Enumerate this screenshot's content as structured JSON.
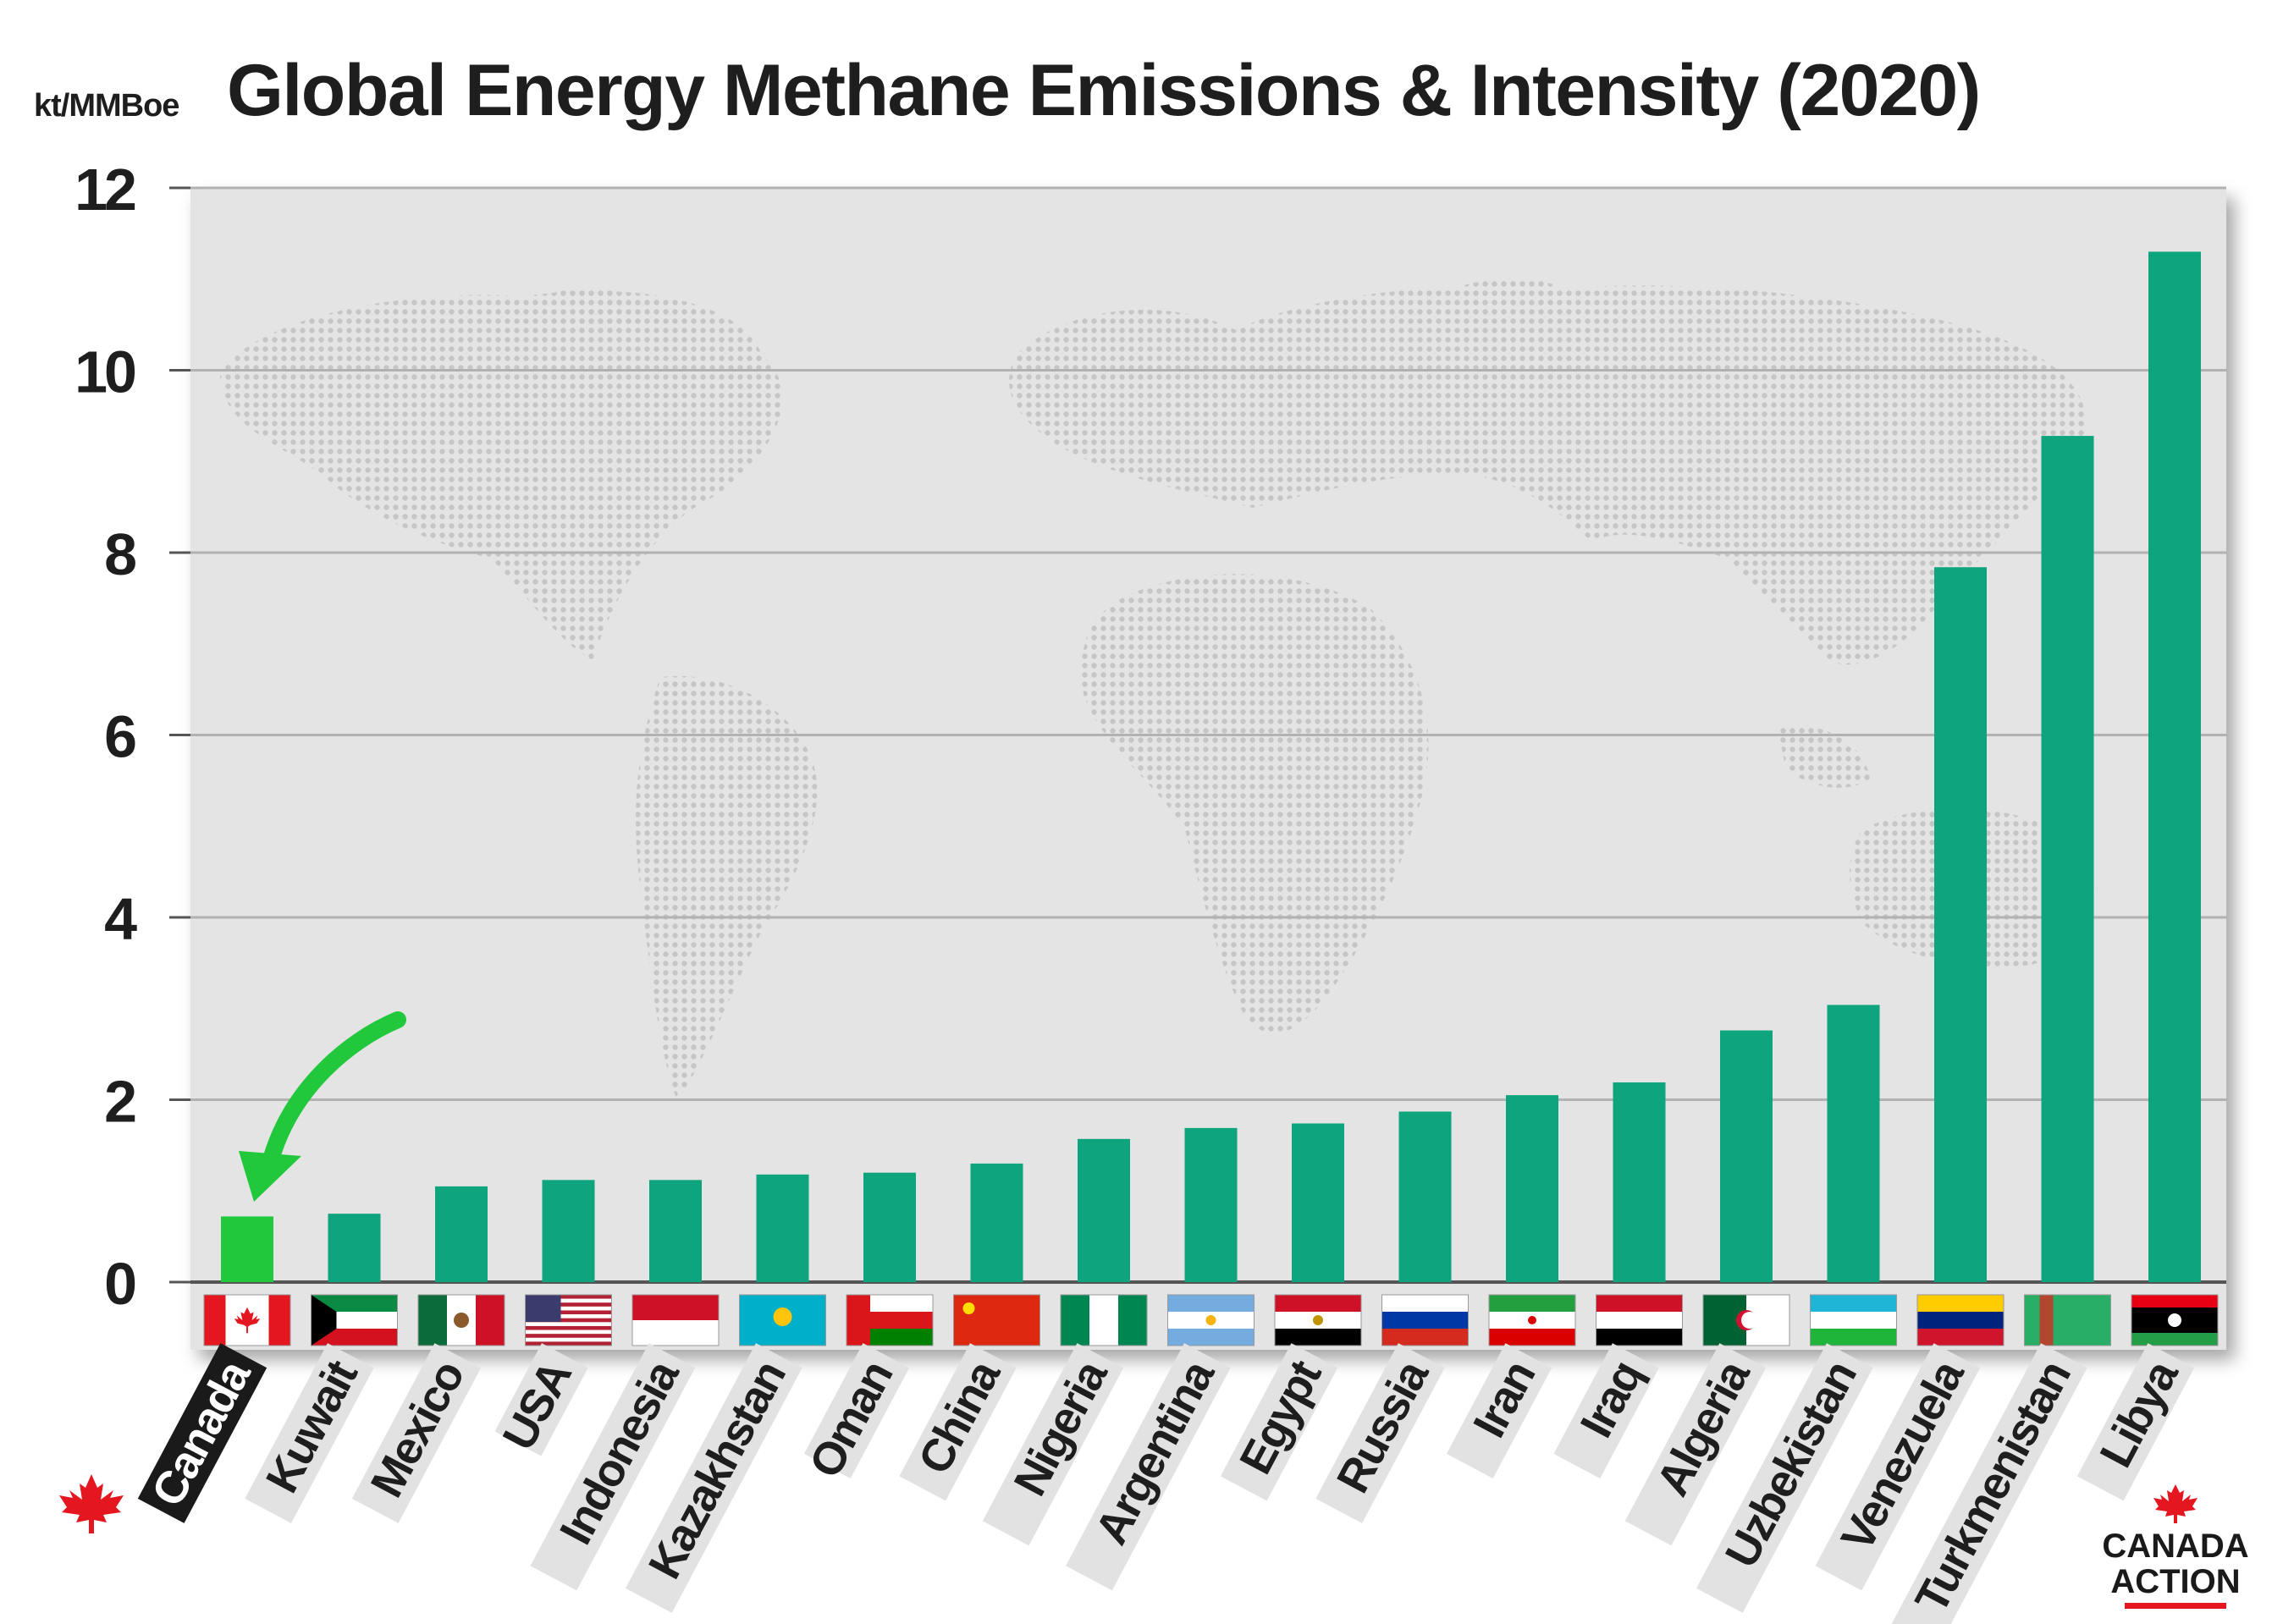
{
  "chart_data": {
    "type": "bar",
    "title": "Global Energy Methane Emissions & Intensity (2020)",
    "ylabel": "kt/MMBoe",
    "xlabel": "",
    "ylim": [
      0,
      12
    ],
    "yticks": [
      0,
      2,
      4,
      6,
      8,
      10,
      12
    ],
    "grid": true,
    "legend": "none",
    "categories": [
      "Canada",
      "Kuwait",
      "Mexico",
      "USA",
      "Indonesia",
      "Kazakhstan",
      "Oman",
      "China",
      "Nigeria",
      "Argentina",
      "Egypt",
      "Russia",
      "Iran",
      "Iraq",
      "Algeria",
      "Uzbekistan",
      "Venezuela",
      "Turkmenistan",
      "Libya"
    ],
    "series": [
      {
        "values": [
          0.72,
          0.75,
          1.05,
          1.12,
          1.12,
          1.18,
          1.2,
          1.3,
          1.57,
          1.69,
          1.74,
          1.87,
          2.05,
          2.19,
          2.76,
          3.04,
          7.84,
          9.28,
          11.3
        ]
      }
    ],
    "highlight": "Canada",
    "colors": {
      "bar": "#0ea47d",
      "highlight_bar": "#22c83c",
      "arrow": "#22c83c",
      "plot_background": "#e4e4e4",
      "map_dots": "#c7c7c7",
      "gridline": "#b2b2b2",
      "label_background": "#e2e2e2",
      "canada_label_background": "#1a1a1a",
      "title": "#1e1e1e"
    },
    "flag_icons": [
      "canada-flag-icon",
      "kuwait-flag-icon",
      "mexico-flag-icon",
      "usa-flag-icon",
      "indonesia-flag-icon",
      "kazakhstan-flag-icon",
      "oman-flag-icon",
      "china-flag-icon",
      "nigeria-flag-icon",
      "argentina-flag-icon",
      "egypt-flag-icon",
      "russia-flag-icon",
      "iran-flag-icon",
      "iraq-flag-icon",
      "algeria-flag-icon",
      "uzbekistan-flag-icon",
      "venezuela-flag-icon",
      "turkmenistan-flag-icon",
      "libya-flag-icon"
    ]
  },
  "logo": {
    "line1": "CANADA",
    "line2": "ACTION"
  }
}
